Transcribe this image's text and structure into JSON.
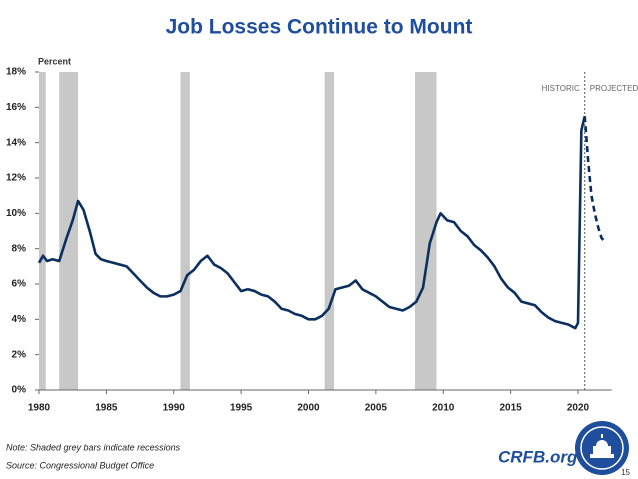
{
  "chart_data": {
    "type": "line",
    "title": "Job Losses Continue to Mount",
    "y_axis_label": "Percent",
    "xlim": [
      1980,
      2022.5
    ],
    "xticks": [
      1980,
      1985,
      1990,
      1995,
      2000,
      2005,
      2010,
      2015,
      2020
    ],
    "ylim": [
      0,
      18
    ],
    "yticks": [
      {
        "value": 0,
        "label": "0%"
      },
      {
        "value": 2,
        "label": "2%"
      },
      {
        "value": 4,
        "label": "4%"
      },
      {
        "value": 6,
        "label": "6%"
      },
      {
        "value": 8,
        "label": "8%"
      },
      {
        "value": 10,
        "label": "10%"
      },
      {
        "value": 12,
        "label": "12%"
      },
      {
        "value": 14,
        "label": "14%"
      },
      {
        "value": 16,
        "label": "16%"
      },
      {
        "value": 18,
        "label": "18%"
      }
    ],
    "recessions": [
      [
        1980.0,
        1980.5
      ],
      [
        1981.5,
        1982.9
      ],
      [
        1990.5,
        1991.2
      ],
      [
        2001.2,
        2001.9
      ],
      [
        2007.9,
        2009.5
      ]
    ],
    "recession_color": "#c8c8c8",
    "divider_x": 2020.5,
    "series": [
      {
        "name": "HISTORIC",
        "color": "#0b2f5e",
        "dashed": false,
        "x": [
          1980.0,
          1980.3,
          1980.6,
          1981.0,
          1981.5,
          1982.0,
          1982.5,
          1982.9,
          1983.3,
          1983.8,
          1984.2,
          1984.6,
          1985.0,
          1985.5,
          1986.0,
          1986.5,
          1987.0,
          1987.5,
          1988.0,
          1988.5,
          1989.0,
          1989.5,
          1990.0,
          1990.5,
          1991.0,
          1991.5,
          1992.0,
          1992.5,
          1993.0,
          1993.5,
          1994.0,
          1994.5,
          1995.0,
          1995.5,
          1996.0,
          1996.5,
          1997.0,
          1997.5,
          1998.0,
          1998.5,
          1999.0,
          1999.5,
          2000.0,
          2000.5,
          2001.0,
          2001.5,
          2002.0,
          2002.5,
          2003.0,
          2003.5,
          2004.0,
          2004.5,
          2005.0,
          2005.5,
          2006.0,
          2006.5,
          2007.0,
          2007.5,
          2008.0,
          2008.5,
          2009.0,
          2009.5,
          2009.8,
          2010.3,
          2010.8,
          2011.3,
          2011.8,
          2012.3,
          2012.8,
          2013.3,
          2013.8,
          2014.3,
          2014.8,
          2015.3,
          2015.8,
          2016.3,
          2016.8,
          2017.3,
          2017.8,
          2018.3,
          2018.8,
          2019.3,
          2019.8,
          2020.0,
          2020.25,
          2020.5
        ],
        "values": [
          7.2,
          7.6,
          7.3,
          7.4,
          7.3,
          8.5,
          9.6,
          10.7,
          10.2,
          8.9,
          7.7,
          7.4,
          7.3,
          7.2,
          7.1,
          7.0,
          6.6,
          6.2,
          5.8,
          5.5,
          5.3,
          5.3,
          5.4,
          5.6,
          6.5,
          6.8,
          7.3,
          7.6,
          7.1,
          6.9,
          6.6,
          6.1,
          5.6,
          5.7,
          5.6,
          5.4,
          5.3,
          5.0,
          4.6,
          4.5,
          4.3,
          4.2,
          4.0,
          4.0,
          4.2,
          4.6,
          5.7,
          5.8,
          5.9,
          6.2,
          5.7,
          5.5,
          5.3,
          5.0,
          4.7,
          4.6,
          4.5,
          4.7,
          5.0,
          5.8,
          8.3,
          9.5,
          10.0,
          9.6,
          9.5,
          9.0,
          8.7,
          8.2,
          7.9,
          7.5,
          7.0,
          6.3,
          5.8,
          5.5,
          5.0,
          4.9,
          4.8,
          4.4,
          4.1,
          3.9,
          3.8,
          3.7,
          3.5,
          3.8,
          14.7,
          15.5
        ]
      },
      {
        "name": "PROJECTED",
        "color": "#0b2f5e",
        "dashed": true,
        "x": [
          2020.5,
          2020.75,
          2021.0,
          2021.25,
          2021.5,
          2021.75,
          2022.0
        ],
        "values": [
          15.5,
          13.0,
          11.0,
          10.0,
          9.2,
          8.6,
          8.4
        ]
      }
    ]
  },
  "footer": {
    "note": "Note: Shaded grey bars indicate recessions",
    "source": "Source: Congressional Budget Office",
    "brand": "CRFB.org",
    "page": "15"
  }
}
